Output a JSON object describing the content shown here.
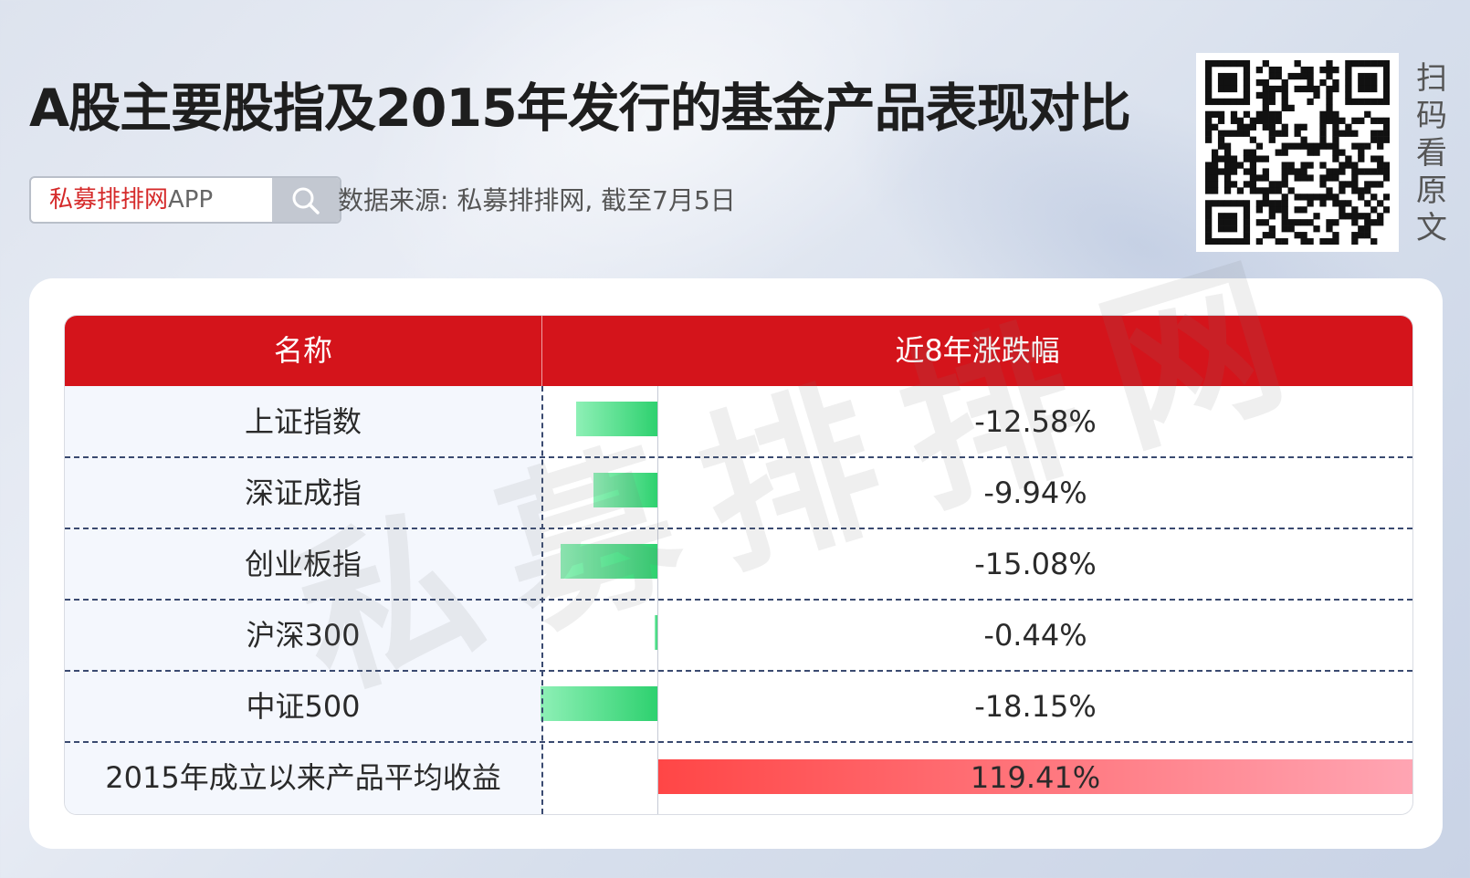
{
  "title": "A股主要股指及2015年发行的基金产品表现对比",
  "search": {
    "brand": "私募排排网",
    "suffix": "APP"
  },
  "source_text": "数据来源: 私募排排网, 截至7月5日",
  "scan_text": [
    "扫",
    "码",
    "看",
    "原",
    "文"
  ],
  "watermark": "私募排排网",
  "icons": {
    "search": "search-icon",
    "qr": "qr-code-icon"
  },
  "colors": {
    "header": "#d4141b",
    "negative": "#2ed16f",
    "positive": "#ff4646"
  },
  "chart_data": {
    "type": "bar",
    "orientation": "horizontal",
    "columns": [
      "名称",
      "近8年涨跌幅"
    ],
    "categories": [
      "上证指数",
      "深证成指",
      "创业板指",
      "沪深300",
      "中证500",
      "2015年成立以来产品平均收益"
    ],
    "values": [
      -12.58,
      -9.94,
      -15.08,
      -0.44,
      -18.15,
      119.41
    ],
    "value_labels": [
      "-12.58%",
      "-9.94%",
      "-15.08%",
      "-0.44%",
      "-18.15%",
      "119.41%"
    ],
    "unit": "%"
  }
}
